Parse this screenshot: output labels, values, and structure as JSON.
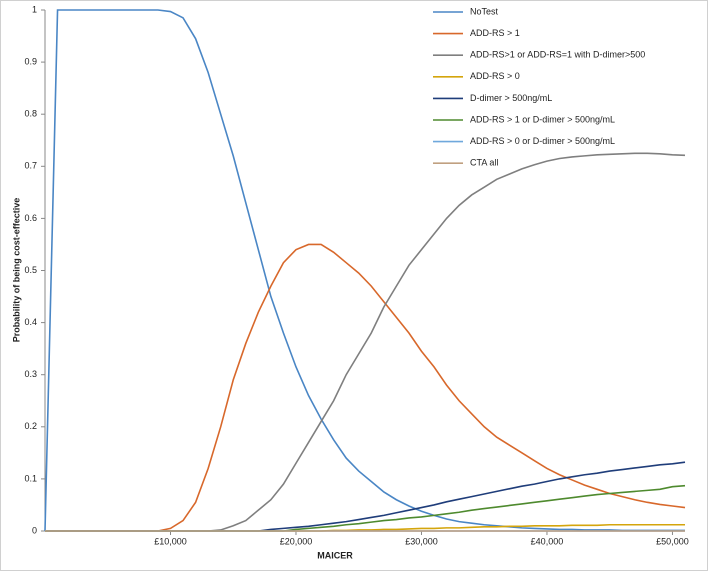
{
  "chart_data": {
    "type": "line",
    "xlabel": "MAICER",
    "ylabel": "Probability of being cost-effective",
    "x": [
      0,
      1000,
      2000,
      3000,
      4000,
      5000,
      6000,
      7000,
      8000,
      9000,
      10000,
      11000,
      12000,
      13000,
      14000,
      15000,
      16000,
      17000,
      18000,
      19000,
      20000,
      21000,
      22000,
      23000,
      24000,
      25000,
      26000,
      27000,
      28000,
      29000,
      30000,
      31000,
      32000,
      33000,
      34000,
      35000,
      36000,
      37000,
      38000,
      39000,
      40000,
      41000,
      42000,
      43000,
      44000,
      45000,
      46000,
      47000,
      48000,
      49000,
      50000,
      51000
    ],
    "xlim": [
      0,
      51000
    ],
    "xticks": [
      {
        "value": 10000,
        "label": "£10,000"
      },
      {
        "value": 20000,
        "label": "£20,000"
      },
      {
        "value": 30000,
        "label": "£30,000"
      },
      {
        "value": 40000,
        "label": "£40,000"
      },
      {
        "value": 50000,
        "label": "£50,000"
      }
    ],
    "ylim": [
      0,
      1
    ],
    "yticks": [
      0,
      0.1,
      0.2,
      0.3,
      0.4,
      0.5,
      0.6,
      0.7,
      0.8,
      0.9,
      1
    ],
    "grid": false,
    "legend": "top-right",
    "series": [
      {
        "name": "NoTest",
        "color": "#4a86c5",
        "values": [
          0,
          1,
          1,
          1,
          1,
          1,
          1,
          1,
          1,
          1,
          0.997,
          0.985,
          0.945,
          0.88,
          0.8,
          0.72,
          0.63,
          0.54,
          0.45,
          0.38,
          0.315,
          0.26,
          0.215,
          0.175,
          0.14,
          0.115,
          0.095,
          0.075,
          0.06,
          0.048,
          0.038,
          0.03,
          0.023,
          0.018,
          0.015,
          0.012,
          0.01,
          0.008,
          0.006,
          0.005,
          0.004,
          0.003,
          0.003,
          0.002,
          0.002,
          0.002,
          0.001,
          0.001,
          0.001,
          0.001,
          0.001,
          0.001
        ]
      },
      {
        "name": "ADD-RS > 1",
        "color": "#d8682b",
        "values": [
          0,
          0,
          0,
          0,
          0,
          0,
          0,
          0,
          0,
          0,
          0.005,
          0.02,
          0.055,
          0.12,
          0.2,
          0.29,
          0.36,
          0.42,
          0.47,
          0.515,
          0.54,
          0.55,
          0.55,
          0.535,
          0.515,
          0.495,
          0.47,
          0.44,
          0.41,
          0.38,
          0.345,
          0.315,
          0.28,
          0.25,
          0.225,
          0.2,
          0.18,
          0.165,
          0.15,
          0.135,
          0.12,
          0.108,
          0.098,
          0.088,
          0.08,
          0.072,
          0.066,
          0.06,
          0.055,
          0.051,
          0.048,
          0.045
        ]
      },
      {
        "name": "ADD-RS>1 or ADD-RS=1 with D-dimer>500",
        "color": "#7f7f7f",
        "values": [
          0,
          0,
          0,
          0,
          0,
          0,
          0,
          0,
          0,
          0,
          0,
          0,
          0,
          0,
          0.002,
          0.01,
          0.02,
          0.04,
          0.06,
          0.09,
          0.13,
          0.17,
          0.21,
          0.25,
          0.3,
          0.34,
          0.38,
          0.43,
          0.47,
          0.51,
          0.54,
          0.57,
          0.6,
          0.625,
          0.645,
          0.66,
          0.675,
          0.685,
          0.695,
          0.703,
          0.71,
          0.715,
          0.718,
          0.72,
          0.722,
          0.723,
          0.724,
          0.725,
          0.725,
          0.724,
          0.722,
          0.721
        ]
      },
      {
        "name": "ADD-RS > 0",
        "color": "#d4a50c",
        "values": [
          0,
          0,
          0,
          0,
          0,
          0,
          0,
          0,
          0,
          0,
          0,
          0,
          0,
          0,
          0,
          0,
          0,
          0,
          0,
          0,
          0,
          0,
          0,
          0.001,
          0.001,
          0.002,
          0.002,
          0.003,
          0.003,
          0.004,
          0.005,
          0.005,
          0.006,
          0.006,
          0.007,
          0.008,
          0.008,
          0.009,
          0.009,
          0.01,
          0.01,
          0.01,
          0.011,
          0.011,
          0.011,
          0.012,
          0.012,
          0.012,
          0.012,
          0.012,
          0.012,
          0.012
        ]
      },
      {
        "name": "D-dimer > 500ng/mL",
        "color": "#1f3d7a",
        "values": [
          0,
          0,
          0,
          0,
          0,
          0,
          0,
          0,
          0,
          0,
          0,
          0,
          0,
          0,
          0,
          0,
          0,
          0,
          0.003,
          0.005,
          0.007,
          0.009,
          0.012,
          0.015,
          0.018,
          0.022,
          0.026,
          0.03,
          0.035,
          0.04,
          0.045,
          0.05,
          0.056,
          0.061,
          0.066,
          0.071,
          0.076,
          0.081,
          0.086,
          0.09,
          0.095,
          0.1,
          0.104,
          0.108,
          0.111,
          0.115,
          0.118,
          0.121,
          0.124,
          0.127,
          0.129,
          0.132
        ]
      },
      {
        "name": "ADD-RS > 1 or D-dimer > 500ng/mL",
        "color": "#4e8a2e",
        "values": [
          0,
          0,
          0,
          0,
          0,
          0,
          0,
          0,
          0,
          0,
          0,
          0,
          0,
          0,
          0,
          0,
          0,
          0,
          0,
          0,
          0.003,
          0.005,
          0.007,
          0.009,
          0.012,
          0.014,
          0.017,
          0.02,
          0.022,
          0.025,
          0.027,
          0.03,
          0.033,
          0.036,
          0.04,
          0.043,
          0.046,
          0.049,
          0.052,
          0.055,
          0.058,
          0.061,
          0.064,
          0.067,
          0.07,
          0.072,
          0.074,
          0.076,
          0.078,
          0.08,
          0.085,
          0.087
        ]
      },
      {
        "name": "ADD-RS > 0 or D-dimer > 500ng/mL",
        "color": "#6fa8dc",
        "values": [
          0,
          0,
          0,
          0,
          0,
          0,
          0,
          0,
          0,
          0,
          0,
          0,
          0,
          0,
          0,
          0,
          0,
          0,
          0,
          0,
          0,
          0,
          0,
          0,
          0,
          0,
          0,
          0,
          0,
          0,
          0,
          0,
          0,
          0,
          0,
          0,
          0,
          0,
          0,
          0,
          0,
          0,
          0,
          0,
          0,
          0,
          0,
          0,
          0,
          0,
          0,
          0
        ]
      },
      {
        "name": "CTA all",
        "color": "#c0a080",
        "values": [
          0,
          0,
          0,
          0,
          0,
          0,
          0,
          0,
          0,
          0,
          0,
          0,
          0,
          0,
          0,
          0,
          0,
          0,
          0,
          0,
          0,
          0,
          0,
          0,
          0,
          0,
          0,
          0,
          0,
          0,
          0,
          0,
          0,
          0,
          0,
          0,
          0,
          0,
          0,
          0,
          0,
          0,
          0,
          0,
          0,
          0,
          0,
          0,
          0,
          0,
          0,
          0
        ]
      }
    ]
  }
}
